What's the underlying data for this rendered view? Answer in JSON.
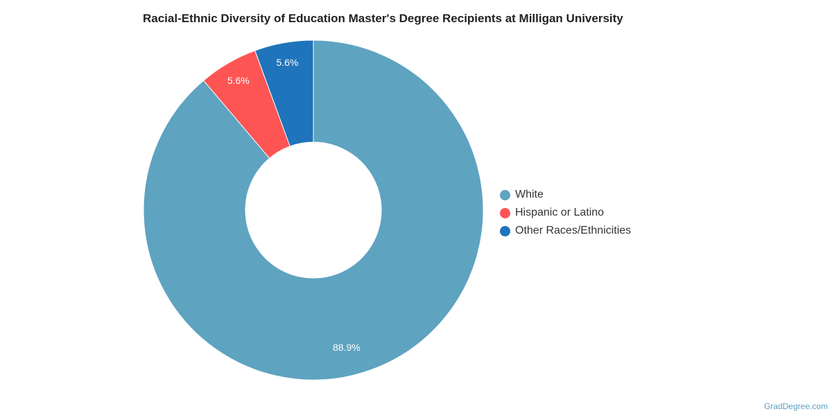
{
  "chart_data": {
    "type": "pie",
    "variant": "donut",
    "title": "Racial-Ethnic Diversity of Education Master's Degree Recipients at Milligan University",
    "slices": [
      {
        "name": "White",
        "value": 88.9,
        "label": "88.9%",
        "color": "#5ea3c0"
      },
      {
        "name": "Hispanic or Latino",
        "value": 5.6,
        "label": "5.6%",
        "color": "#fe5454"
      },
      {
        "name": "Other Races/Ethnicities",
        "value": 5.6,
        "label": "5.6%",
        "color": "#1f74bb"
      }
    ],
    "legend_position": "right"
  },
  "credit": "GradDegree.com"
}
